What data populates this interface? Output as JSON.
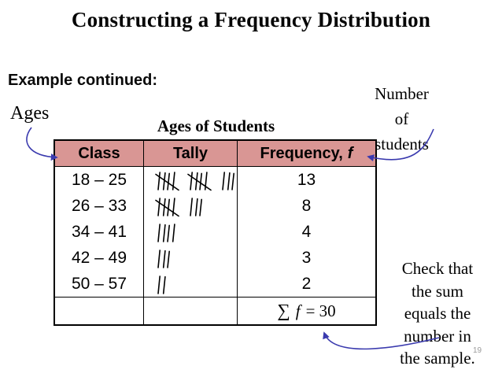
{
  "title": "Constructing a Frequency Distribution",
  "example_label": "Example continued:",
  "annotations": {
    "ages": "Ages",
    "number_of_students": "Number\nof\nstudents",
    "check_note": "Check that\nthe sum\nequals the\nnumber in\nthe sample."
  },
  "page_number": "19",
  "table": {
    "caption": "Ages of Students",
    "headers": {
      "class": "Class",
      "tally": "Tally",
      "frequency_label": "Frequency,",
      "frequency_f": "f"
    },
    "rows": [
      {
        "class": "18 – 25",
        "tally_groups": [
          5,
          5,
          3
        ],
        "frequency": "13"
      },
      {
        "class": "26 – 33",
        "tally_groups": [
          5,
          3
        ],
        "frequency": "8"
      },
      {
        "class": "34 – 41",
        "tally_groups": [
          4
        ],
        "frequency": "4"
      },
      {
        "class": "42 – 49",
        "tally_groups": [
          3
        ],
        "frequency": "3"
      },
      {
        "class": "50 – 57",
        "tally_groups": [
          2
        ],
        "frequency": "2"
      }
    ],
    "sum": {
      "sigma": "∑",
      "f": "f",
      "equals": "= 30"
    }
  },
  "colors": {
    "arrow_blue": "#3a3aae",
    "header_pink": "#d99694",
    "page_number_gray": "#9a9a9a"
  },
  "chart_data": {
    "type": "table",
    "title": "Ages of Students",
    "columns": [
      "Class",
      "Tally",
      "Frequency, f"
    ],
    "classes": [
      "18 – 25",
      "26 – 33",
      "34 – 41",
      "42 – 49",
      "50 – 57"
    ],
    "frequencies": [
      13,
      8,
      4,
      3,
      2
    ],
    "total": 30
  }
}
